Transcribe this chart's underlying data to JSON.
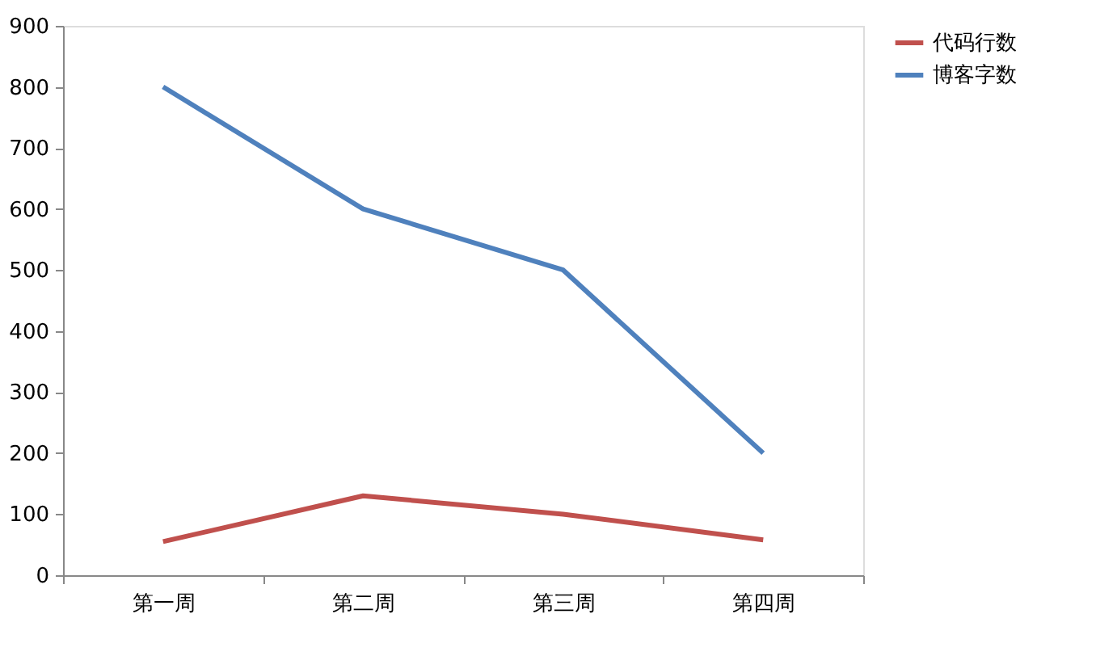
{
  "chart_data": {
    "type": "line",
    "categories": [
      "第一周",
      "第二周",
      "第三周",
      "第四周"
    ],
    "series": [
      {
        "name": "代码行数",
        "color": "#c0504d",
        "values": [
          55,
          130,
          100,
          58
        ]
      },
      {
        "name": "博客字数",
        "color": "#4f81bd",
        "values": [
          800,
          600,
          500,
          200
        ]
      }
    ],
    "ylim": [
      0,
      900
    ],
    "yticks": [
      0,
      100,
      200,
      300,
      400,
      500,
      600,
      700,
      800,
      900
    ],
    "grid": false,
    "legend": "right"
  }
}
